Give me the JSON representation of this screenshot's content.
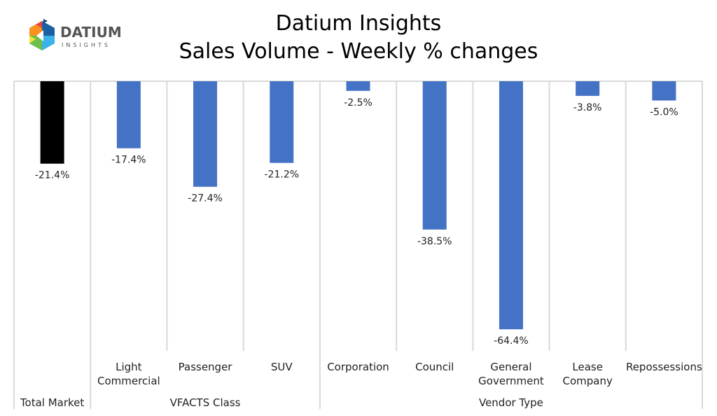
{
  "logo": {
    "name": "DATIUM",
    "tagline": "INSIGHTS"
  },
  "chart_data": {
    "type": "bar",
    "title": "Datium Insights",
    "subtitle": "Sales Volume - Weekly % changes",
    "categories": [
      "Total Market",
      "Light Commercial",
      "Passenger",
      "SUV",
      "Corporation",
      "Council",
      "General Government",
      "Lease Company",
      "Repossessions"
    ],
    "category_label_lines": [
      [
        ""
      ],
      [
        "Light",
        "Commercial"
      ],
      [
        "Passenger"
      ],
      [
        "SUV"
      ],
      [
        "Corporation"
      ],
      [
        "Council"
      ],
      [
        "General",
        "Government"
      ],
      [
        "Lease",
        "Company"
      ],
      [
        "Repossessions"
      ]
    ],
    "groups": [
      {
        "label": "Total Market",
        "span": 1
      },
      {
        "label": "VFACTS Class",
        "span": 3
      },
      {
        "label": "Vendor Type",
        "span": 5
      }
    ],
    "values": [
      -21.4,
      -17.4,
      -27.4,
      -21.2,
      -2.5,
      -38.5,
      -64.4,
      -3.8,
      -5.0
    ],
    "data_labels": [
      "-21.4%",
      "-17.4%",
      "-27.4%",
      "-21.2%",
      "-2.5%",
      "-38.5%",
      "-64.4%",
      "-3.8%",
      "-5.0%"
    ],
    "colors": [
      "#000000",
      "#4472C4",
      "#4472C4",
      "#4472C4",
      "#4472C4",
      "#4472C4",
      "#4472C4",
      "#4472C4",
      "#4472C4"
    ],
    "ylim": [
      -70,
      0
    ],
    "xlabel": "",
    "ylabel": "",
    "grid": false,
    "legend": "none"
  }
}
